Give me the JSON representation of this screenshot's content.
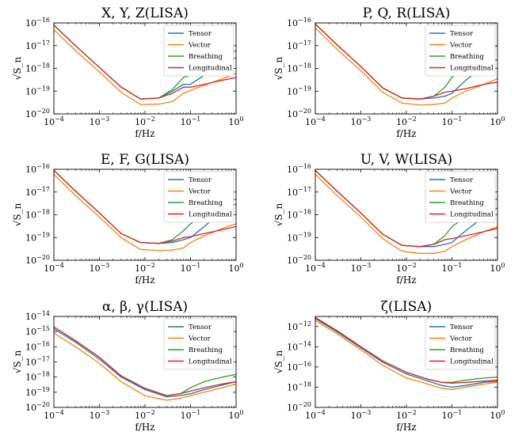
{
  "chart_data": [
    {
      "type": "line",
      "title": "X, Y, Z(LISA)",
      "xlabel": "f/Hz",
      "ylabel": "√S_n",
      "xscale": "log",
      "yscale": "log",
      "xlim": [
        0.0001,
        1
      ],
      "ylim": [
        1e-20,
        1e-16
      ],
      "xticks": [
        "10^-4",
        "10^-3",
        "10^-2",
        "10^-1",
        "10^0"
      ],
      "yticks": [
        "10^-20",
        "10^-19",
        "10^-18",
        "10^-17",
        "10^-16"
      ],
      "legend": "top-right",
      "series": [
        {
          "name": "Tensor",
          "color": "#1f77b4",
          "x": [
            0.0001,
            0.0003,
            0.001,
            0.003,
            0.008,
            0.02,
            0.04,
            0.07,
            0.1,
            0.2,
            0.5,
            1
          ],
          "y": [
            8e-17,
            1e-17,
            1.1e-18,
            1.5e-19,
            4.5e-20,
            5e-20,
            1e-19,
            2e-19,
            2e-19,
            5e-19,
            1.5e-18,
            3e-18
          ]
        },
        {
          "name": "Vector",
          "color": "#ff7f0e",
          "x": [
            0.0001,
            0.0003,
            0.001,
            0.003,
            0.008,
            0.02,
            0.04,
            0.07,
            0.1,
            0.2,
            0.5,
            1
          ],
          "y": [
            5e-17,
            6e-18,
            7e-19,
            9e-20,
            2.6e-20,
            2.7e-20,
            3.5e-20,
            8e-20,
            1.1e-19,
            1.8e-19,
            3.5e-19,
            6e-19
          ]
        },
        {
          "name": "Breathing",
          "color": "#2ca02c",
          "x": [
            0.0001,
            0.0003,
            0.001,
            0.003,
            0.008,
            0.02,
            0.04,
            0.07,
            0.1,
            0.2,
            0.5,
            1
          ],
          "y": [
            8e-17,
            1e-17,
            1.1e-18,
            1.5e-19,
            4.5e-20,
            5e-20,
            1.2e-19,
            4e-19,
            5e-19,
            1e-18,
            3e-18,
            6e-18
          ]
        },
        {
          "name": "Longitudinal",
          "color": "#d62728",
          "x": [
            0.0001,
            0.0003,
            0.001,
            0.003,
            0.008,
            0.02,
            0.04,
            0.07,
            0.1,
            0.2,
            0.5,
            1
          ],
          "y": [
            8e-17,
            1e-17,
            1.1e-18,
            1.5e-19,
            4.5e-20,
            5e-20,
            8e-20,
            1.5e-19,
            1.5e-19,
            2e-19,
            3e-19,
            4e-19
          ]
        }
      ]
    },
    {
      "type": "line",
      "title": "P, Q, R(LISA)",
      "xlabel": "f/Hz",
      "ylabel": "√S_n",
      "xscale": "log",
      "yscale": "log",
      "xlim": [
        0.0001,
        1
      ],
      "ylim": [
        1e-20,
        1e-16
      ],
      "xticks": [
        "10^-4",
        "10^-3",
        "10^-2",
        "10^-1",
        "10^0"
      ],
      "yticks": [
        "10^-20",
        "10^-19",
        "10^-18",
        "10^-17",
        "10^-16"
      ],
      "legend": "top-right",
      "series": [
        {
          "name": "Tensor",
          "color": "#1f77b4",
          "x": [
            0.0001,
            0.0003,
            0.001,
            0.003,
            0.008,
            0.02,
            0.04,
            0.07,
            0.1,
            0.2,
            0.5,
            1
          ],
          "y": [
            9e-17,
            1.1e-17,
            1.2e-18,
            1.4e-19,
            5e-20,
            4.5e-20,
            5e-20,
            6e-20,
            8e-20,
            3e-19,
            1.2e-18,
            2.5e-18
          ]
        },
        {
          "name": "Vector",
          "color": "#ff7f0e",
          "x": [
            0.0001,
            0.0003,
            0.001,
            0.003,
            0.008,
            0.02,
            0.04,
            0.07,
            0.1,
            0.2,
            0.5,
            1
          ],
          "y": [
            6e-17,
            7e-18,
            8e-19,
            9e-20,
            3e-20,
            2.5e-20,
            2.6e-20,
            3e-20,
            5e-20,
            1e-19,
            2e-19,
            3.5e-19
          ]
        },
        {
          "name": "Breathing",
          "color": "#2ca02c",
          "x": [
            0.0001,
            0.0003,
            0.001,
            0.003,
            0.008,
            0.02,
            0.04,
            0.07,
            0.1,
            0.2,
            0.5,
            1
          ],
          "y": [
            9e-17,
            1.1e-17,
            1.2e-18,
            1.4e-19,
            5e-20,
            4.5e-20,
            6e-20,
            1.5e-19,
            4e-19,
            1.2e-18,
            5e-18,
            1e-17
          ]
        },
        {
          "name": "Longitudinal",
          "color": "#d62728",
          "x": [
            0.0001,
            0.0003,
            0.001,
            0.003,
            0.008,
            0.02,
            0.04,
            0.07,
            0.1,
            0.2,
            0.5,
            1
          ],
          "y": [
            9e-17,
            1.1e-17,
            1.2e-18,
            1.4e-19,
            5e-20,
            4.5e-20,
            6e-20,
            9e-20,
            1e-19,
            1.3e-19,
            2e-19,
            2.5e-19
          ]
        }
      ]
    },
    {
      "type": "line",
      "title": "E, F, G(LISA)",
      "xlabel": "f/Hz",
      "ylabel": "√S_n",
      "xscale": "log",
      "yscale": "log",
      "xlim": [
        0.0001,
        1
      ],
      "ylim": [
        1e-20,
        1e-16
      ],
      "xticks": [
        "10^-4",
        "10^-3",
        "10^-2",
        "10^-1",
        "10^0"
      ],
      "yticks": [
        "10^-20",
        "10^-19",
        "10^-18",
        "10^-17",
        "10^-16"
      ],
      "legend": "top-right",
      "series": [
        {
          "name": "Tensor",
          "color": "#1f77b4",
          "x": [
            0.0001,
            0.0003,
            0.001,
            0.003,
            0.008,
            0.02,
            0.04,
            0.07,
            0.1,
            0.2,
            0.5,
            1
          ],
          "y": [
            9e-17,
            1.1e-17,
            1.2e-18,
            1.5e-19,
            6e-20,
            5.5e-20,
            6e-20,
            8e-20,
            1e-19,
            3e-19,
            1.5e-18,
            3e-18
          ]
        },
        {
          "name": "Vector",
          "color": "#ff7f0e",
          "x": [
            0.0001,
            0.0003,
            0.001,
            0.003,
            0.008,
            0.02,
            0.04,
            0.07,
            0.1,
            0.2,
            0.5,
            1
          ],
          "y": [
            6e-17,
            7e-18,
            8e-19,
            1e-19,
            3e-20,
            2.7e-20,
            2.8e-20,
            3.5e-20,
            6e-20,
            1.2e-19,
            2.5e-19,
            4e-19
          ]
        },
        {
          "name": "Breathing",
          "color": "#2ca02c",
          "x": [
            0.0001,
            0.0003,
            0.001,
            0.003,
            0.008,
            0.02,
            0.04,
            0.07,
            0.1,
            0.2,
            0.5,
            1
          ],
          "y": [
            9e-17,
            1.1e-17,
            1.2e-18,
            1.5e-19,
            6e-20,
            5.5e-20,
            8e-20,
            2e-19,
            4e-19,
            1e-18,
            3e-18,
            5e-18
          ]
        },
        {
          "name": "Longitudinal",
          "color": "#d62728",
          "x": [
            0.0001,
            0.0003,
            0.001,
            0.003,
            0.008,
            0.02,
            0.04,
            0.07,
            0.1,
            0.2,
            0.5,
            1
          ],
          "y": [
            9e-17,
            1.1e-17,
            1.2e-18,
            1.5e-19,
            6e-20,
            5.5e-20,
            7e-20,
            1e-19,
            1.1e-19,
            1.5e-19,
            2.2e-19,
            3e-19
          ]
        }
      ]
    },
    {
      "type": "line",
      "title": "U, V, W(LISA)",
      "xlabel": "f/Hz",
      "ylabel": "√S_n",
      "xscale": "log",
      "yscale": "log",
      "xlim": [
        0.0001,
        1
      ],
      "ylim": [
        1e-20,
        1e-16
      ],
      "xticks": [
        "10^-4",
        "10^-3",
        "10^-2",
        "10^-1",
        "10^0"
      ],
      "yticks": [
        "10^-20",
        "10^-19",
        "10^-18",
        "10^-17",
        "10^-16"
      ],
      "legend": "top-right",
      "series": [
        {
          "name": "Tensor",
          "color": "#1f77b4",
          "x": [
            0.0001,
            0.0003,
            0.001,
            0.003,
            0.008,
            0.02,
            0.04,
            0.07,
            0.1,
            0.2,
            0.5,
            1
          ],
          "y": [
            9e-17,
            1.1e-17,
            1.2e-18,
            1.4e-19,
            4.5e-20,
            4e-20,
            4e-20,
            5e-20,
            6e-20,
            2e-19,
            8e-19,
            2e-18
          ]
        },
        {
          "name": "Vector",
          "color": "#ff7f0e",
          "x": [
            0.0001,
            0.0003,
            0.001,
            0.003,
            0.008,
            0.02,
            0.04,
            0.07,
            0.1,
            0.2,
            0.5,
            1
          ],
          "y": [
            6e-17,
            7e-18,
            8e-19,
            9e-20,
            2.5e-20,
            2e-20,
            2e-20,
            2.5e-20,
            4e-20,
            8e-20,
            1.8e-19,
            3e-19
          ]
        },
        {
          "name": "Breathing",
          "color": "#2ca02c",
          "x": [
            0.0001,
            0.0003,
            0.001,
            0.003,
            0.008,
            0.02,
            0.04,
            0.07,
            0.1,
            0.2,
            0.5,
            1
          ],
          "y": [
            9e-17,
            1.1e-17,
            1.2e-18,
            1.4e-19,
            4.5e-20,
            4e-20,
            5e-20,
            1.2e-19,
            3e-19,
            8e-19,
            3e-18,
            5e-18
          ]
        },
        {
          "name": "Longitudinal",
          "color": "#d62728",
          "x": [
            0.0001,
            0.0003,
            0.001,
            0.003,
            0.008,
            0.02,
            0.04,
            0.07,
            0.1,
            0.2,
            0.5,
            1
          ],
          "y": [
            9e-17,
            1.1e-17,
            1.2e-18,
            1.4e-19,
            4.5e-20,
            4e-20,
            5e-20,
            8e-20,
            9e-20,
            1.2e-19,
            1.8e-19,
            2.5e-19
          ]
        }
      ]
    },
    {
      "type": "line",
      "title": "α, β, γ(LISA)",
      "xlabel": "f/Hz",
      "ylabel": "√S_n",
      "xscale": "log",
      "yscale": "log",
      "xlim": [
        0.0001,
        1
      ],
      "ylim": [
        1e-20,
        1e-14
      ],
      "xticks": [
        "10^-4",
        "10^-3",
        "10^-2",
        "10^-1",
        "10^0"
      ],
      "yticks": [
        "10^-20",
        "10^-19",
        "10^-18",
        "10^-17",
        "10^-16",
        "10^-15",
        "10^-14"
      ],
      "legend": "top-right",
      "series": [
        {
          "name": "Tensor",
          "color": "#1f77b4",
          "x": [
            0.0001,
            0.0003,
            0.001,
            0.003,
            0.01,
            0.03,
            0.06,
            0.1,
            0.2,
            0.5,
            1
          ],
          "y": [
            1.5e-15,
            2e-16,
            1.5e-17,
            1e-18,
            1.5e-19,
            5e-20,
            6e-20,
            8e-20,
            1.5e-19,
            3e-19,
            5e-19
          ]
        },
        {
          "name": "Vector",
          "color": "#ff7f0e",
          "x": [
            0.0001,
            0.0003,
            0.001,
            0.003,
            0.01,
            0.03,
            0.06,
            0.1,
            0.2,
            0.5,
            1
          ],
          "y": [
            8e-16,
            1e-16,
            8e-18,
            5e-19,
            6e-20,
            3e-20,
            4e-20,
            6e-20,
            1e-19,
            2e-19,
            3.5e-19
          ]
        },
        {
          "name": "Breathing",
          "color": "#2ca02c",
          "x": [
            0.0001,
            0.0003,
            0.001,
            0.003,
            0.01,
            0.03,
            0.06,
            0.1,
            0.2,
            0.5,
            1
          ],
          "y": [
            2e-15,
            2.5e-16,
            2e-17,
            1.2e-18,
            1.8e-19,
            6e-20,
            8e-20,
            2e-19,
            5e-19,
            1e-18,
            1.5e-18
          ]
        },
        {
          "name": "Longitudinal",
          "color": "#d62728",
          "x": [
            0.0001,
            0.0003,
            0.001,
            0.003,
            0.01,
            0.03,
            0.06,
            0.1,
            0.2,
            0.5,
            1
          ],
          "y": [
            2e-15,
            2.5e-16,
            2e-17,
            1.2e-18,
            1.8e-19,
            6e-20,
            8e-20,
            1.2e-19,
            2e-19,
            3.5e-19,
            5e-19
          ]
        }
      ]
    },
    {
      "type": "line",
      "title": "ζ(LISA)",
      "xlabel": "f/Hz",
      "ylabel": "√S_n",
      "xscale": "log",
      "yscale": "log",
      "xlim": [
        0.0001,
        1
      ],
      "ylim": [
        1e-20,
        1e-11
      ],
      "xticks": [
        "10^-4",
        "10^-3",
        "10^-2",
        "10^-1",
        "10^0"
      ],
      "yticks": [
        "10^-20",
        "10^-18",
        "10^-16",
        "10^-14",
        "10^-12"
      ],
      "legend": "top-right",
      "series": [
        {
          "name": "Tensor",
          "color": "#1f77b4",
          "x": [
            0.0001,
            0.0003,
            0.001,
            0.003,
            0.01,
            0.03,
            0.06,
            0.1,
            0.2,
            0.5,
            1
          ],
          "y": [
            6e-12,
            3e-13,
            8e-15,
            3e-16,
            2e-17,
            4e-18,
            1.5e-18,
            1e-18,
            1.5e-18,
            3e-18,
            4e-18
          ]
        },
        {
          "name": "Vector",
          "color": "#ff7f0e",
          "x": [
            0.0001,
            0.0003,
            0.001,
            0.003,
            0.01,
            0.03,
            0.06,
            0.1,
            0.2,
            0.5,
            1
          ],
          "y": [
            4e-12,
            2e-13,
            5e-15,
            1.5e-16,
            8e-18,
            2e-18,
            8e-19,
            6e-19,
            1e-18,
            2e-18,
            3e-18
          ]
        },
        {
          "name": "Breathing",
          "color": "#2ca02c",
          "x": [
            0.0001,
            0.0003,
            0.001,
            0.003,
            0.01,
            0.03,
            0.06,
            0.1,
            0.2,
            0.5,
            1
          ],
          "y": [
            7e-12,
            4e-13,
            1e-14,
            4e-16,
            3e-17,
            6e-18,
            3e-18,
            3e-18,
            5e-18,
            8e-18,
            1e-17
          ]
        },
        {
          "name": "Longitudinal",
          "color": "#d62728",
          "x": [
            0.0001,
            0.0003,
            0.001,
            0.003,
            0.01,
            0.03,
            0.06,
            0.1,
            0.2,
            0.5,
            1
          ],
          "y": [
            8e-12,
            4e-13,
            1e-14,
            4e-16,
            3e-17,
            6e-18,
            3e-18,
            2.5e-18,
            3e-18,
            4e-18,
            5e-18
          ]
        }
      ]
    }
  ]
}
